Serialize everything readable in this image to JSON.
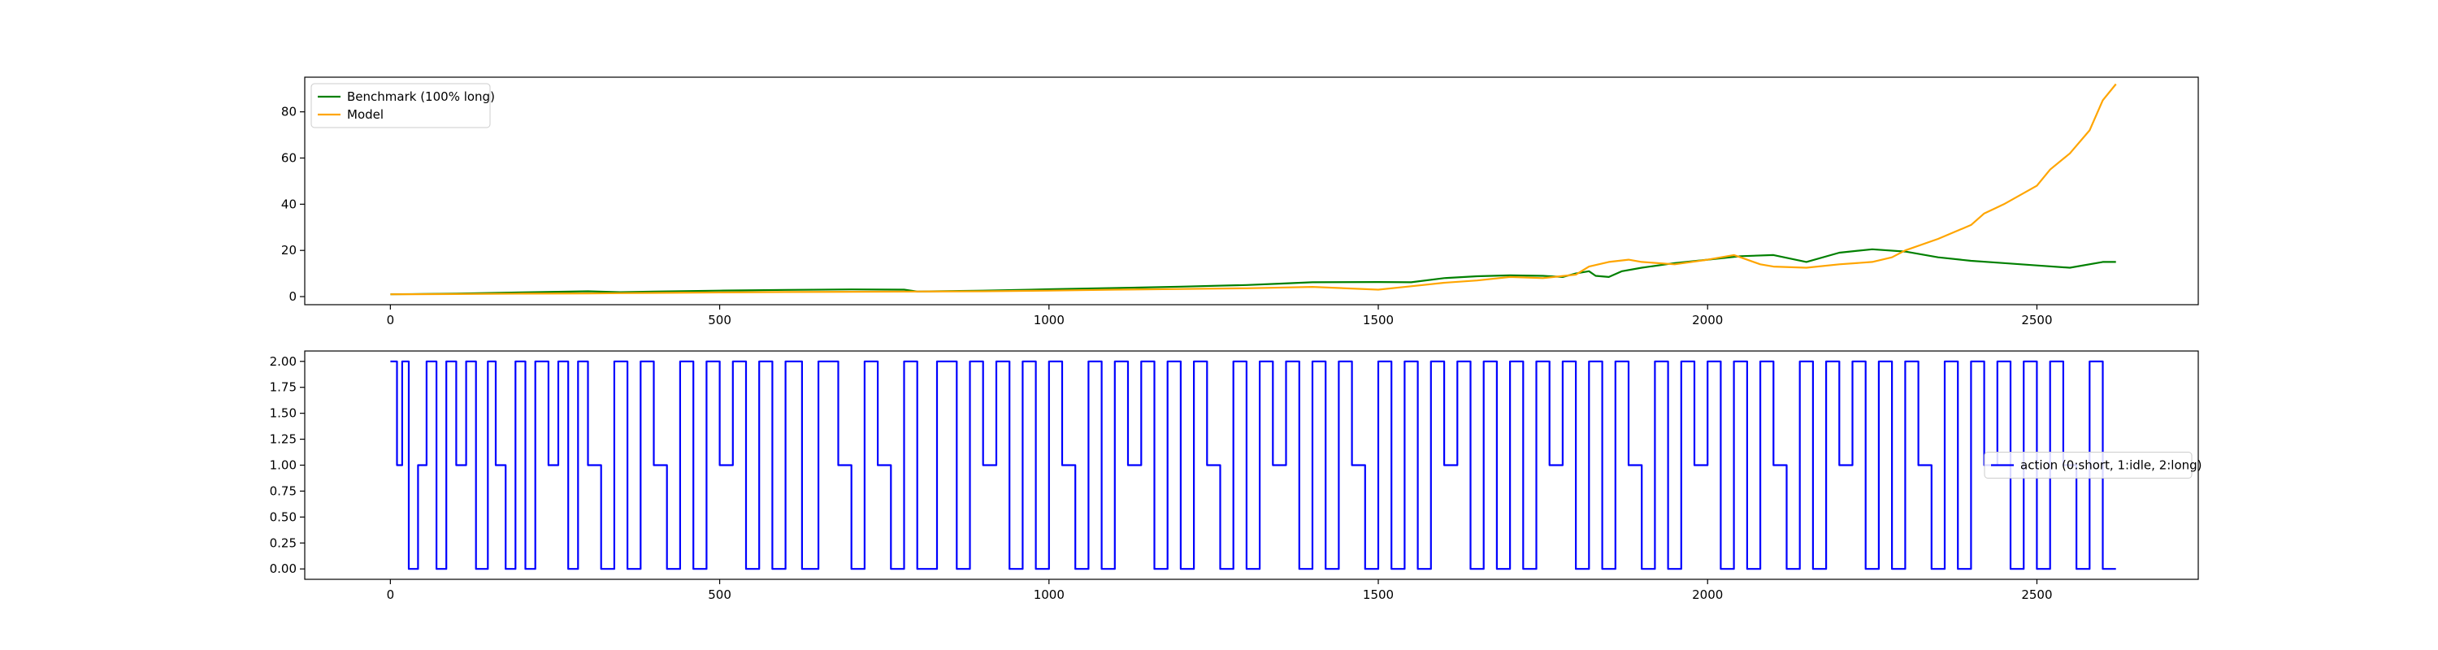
{
  "chart_data": [
    {
      "type": "line",
      "title": "",
      "xlabel": "",
      "ylabel": "",
      "xlim": [
        -130,
        2745
      ],
      "ylim": [
        -3.5,
        95
      ],
      "xticks": [
        0,
        500,
        1000,
        1500,
        2000,
        2500
      ],
      "yticks": [
        0,
        20,
        40,
        60,
        80
      ],
      "grid": false,
      "legend": {
        "placement": "upper-left"
      },
      "series": [
        {
          "name": "Benchmark (100% long)",
          "color": "#008000",
          "x": [
            0,
            100,
            200,
            300,
            350,
            400,
            500,
            600,
            700,
            780,
            800,
            900,
            1000,
            1100,
            1200,
            1300,
            1350,
            1400,
            1500,
            1550,
            1600,
            1650,
            1700,
            1750,
            1780,
            1800,
            1820,
            1830,
            1850,
            1870,
            1900,
            1950,
            2000,
            2050,
            2100,
            2150,
            2200,
            2250,
            2300,
            2350,
            2400,
            2450,
            2500,
            2550,
            2600,
            2620
          ],
          "values": [
            1,
            1.3,
            1.8,
            2.3,
            1.9,
            2.2,
            2.6,
            2.9,
            3.1,
            3.0,
            2.2,
            2.6,
            3.2,
            3.7,
            4.3,
            5.0,
            5.6,
            6.2,
            6.3,
            6.2,
            8.0,
            8.8,
            9.2,
            9.0,
            8.5,
            10,
            11,
            9,
            8.5,
            11,
            12.5,
            14.5,
            16,
            17.5,
            18,
            15,
            19,
            20.5,
            19.5,
            17,
            15.5,
            14.5,
            13.5,
            12.5,
            15,
            15
          ]
        },
        {
          "name": "Model",
          "color": "#ffa500",
          "x": [
            0,
            100,
            200,
            300,
            400,
            500,
            600,
            700,
            800,
            900,
            1000,
            1100,
            1200,
            1300,
            1400,
            1500,
            1550,
            1600,
            1650,
            1700,
            1750,
            1800,
            1820,
            1850,
            1880,
            1900,
            1950,
            2000,
            2040,
            2050,
            2080,
            2100,
            2150,
            2200,
            2250,
            2280,
            2300,
            2350,
            2400,
            2420,
            2450,
            2500,
            2520,
            2550,
            2580,
            2600,
            2620
          ],
          "values": [
            1,
            1.1,
            1.3,
            1.4,
            1.6,
            1.8,
            2.0,
            2.1,
            2.2,
            2.3,
            2.6,
            3.0,
            3.3,
            3.6,
            4.2,
            3.0,
            4.5,
            6.0,
            7.0,
            8.5,
            8.0,
            9.5,
            13,
            15,
            16,
            15,
            14,
            16,
            18,
            17,
            14,
            13,
            12.5,
            14,
            15,
            17,
            20,
            25,
            31,
            36,
            40,
            48,
            55,
            62,
            72,
            85,
            92
          ]
        }
      ]
    },
    {
      "type": "line",
      "title": "",
      "xlabel": "",
      "ylabel": "",
      "xlim": [
        -130,
        2745
      ],
      "ylim": [
        -0.1,
        2.1
      ],
      "xticks": [
        0,
        500,
        1000,
        1500,
        2000,
        2500
      ],
      "yticks": [
        0,
        0.25,
        0.5,
        0.75,
        1.0,
        1.25,
        1.5,
        1.75,
        2.0
      ],
      "ytick_labels": [
        "0.00",
        "0.25",
        "0.50",
        "0.75",
        "1.00",
        "1.25",
        "1.50",
        "1.75",
        "2.00"
      ],
      "grid": false,
      "legend": {
        "placement": "center-right"
      },
      "series": [
        {
          "name": "action (0:short, 1:idle, 2:long)",
          "color": "#0000ff",
          "x": [
            0,
            10,
            18,
            28,
            42,
            55,
            70,
            85,
            100,
            115,
            130,
            148,
            160,
            175,
            190,
            205,
            220,
            240,
            255,
            270,
            285,
            300,
            320,
            340,
            360,
            380,
            400,
            420,
            440,
            460,
            480,
            500,
            520,
            540,
            560,
            580,
            600,
            625,
            650,
            680,
            700,
            720,
            740,
            760,
            780,
            800,
            830,
            860,
            880,
            900,
            920,
            940,
            960,
            980,
            1000,
            1020,
            1040,
            1060,
            1080,
            1100,
            1120,
            1140,
            1160,
            1180,
            1200,
            1220,
            1240,
            1260,
            1280,
            1300,
            1320,
            1340,
            1360,
            1380,
            1400,
            1420,
            1440,
            1460,
            1480,
            1500,
            1520,
            1540,
            1560,
            1580,
            1600,
            1620,
            1640,
            1660,
            1680,
            1700,
            1720,
            1740,
            1760,
            1780,
            1800,
            1820,
            1840,
            1860,
            1880,
            1900,
            1920,
            1940,
            1960,
            1980,
            2000,
            2020,
            2040,
            2060,
            2080,
            2100,
            2120,
            2140,
            2160,
            2180,
            2200,
            2220,
            2240,
            2260,
            2280,
            2300,
            2320,
            2340,
            2360,
            2380,
            2400,
            2420,
            2440,
            2460,
            2480,
            2500,
            2520,
            2540,
            2560,
            2580,
            2600,
            2620
          ],
          "values": [
            2,
            1,
            2,
            0,
            1,
            2,
            0,
            2,
            1,
            2,
            0,
            2,
            1,
            0,
            2,
            0,
            2,
            1,
            2,
            0,
            2,
            1,
            0,
            2,
            0,
            2,
            1,
            0,
            2,
            0,
            2,
            1,
            2,
            0,
            2,
            0,
            2,
            0,
            2,
            1,
            0,
            2,
            1,
            0,
            2,
            0,
            2,
            0,
            2,
            1,
            2,
            0,
            2,
            0,
            2,
            1,
            0,
            2,
            0,
            2,
            1,
            2,
            0,
            2,
            0,
            2,
            1,
            0,
            2,
            0,
            2,
            1,
            2,
            0,
            2,
            0,
            2,
            1,
            0,
            2,
            0,
            2,
            0,
            2,
            1,
            2,
            0,
            2,
            0,
            2,
            0,
            2,
            1,
            2,
            0,
            2,
            0,
            2,
            1,
            0,
            2,
            0,
            2,
            1,
            2,
            0,
            2,
            0,
            2,
            1,
            0,
            2,
            0,
            2,
            1,
            2,
            0,
            2,
            0,
            2,
            1,
            0,
            2,
            0,
            2,
            1,
            2,
            0,
            2,
            0,
            2,
            1,
            0,
            2,
            0,
            0
          ]
        }
      ]
    }
  ]
}
